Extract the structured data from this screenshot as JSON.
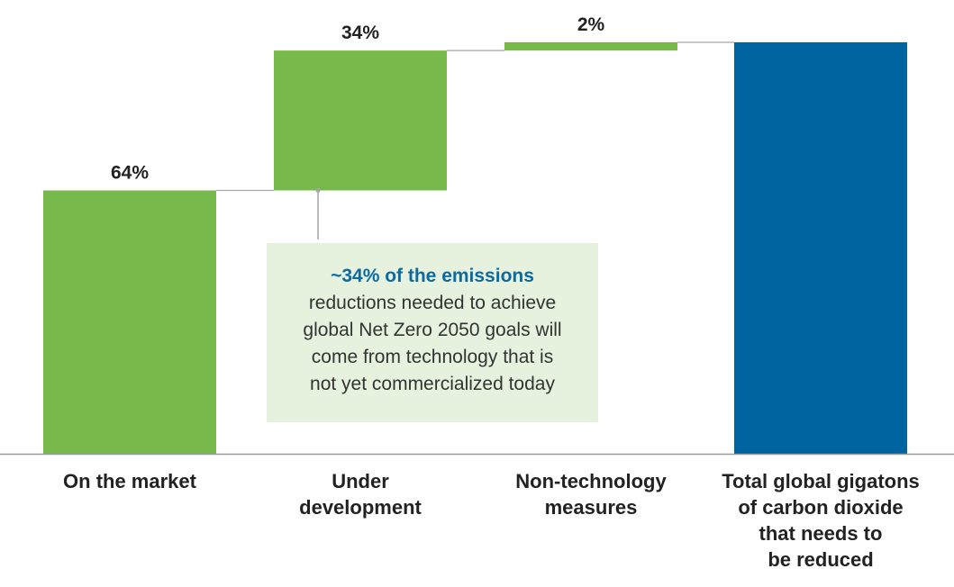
{
  "chart_data": {
    "type": "bar",
    "subtype": "waterfall",
    "categories": [
      "On the market",
      "Under development",
      "Non-technology measures",
      "Total global gigatons of carbon dioxide that needs to be reduced"
    ],
    "category_display": [
      "On the market",
      "Under\ndevelopment",
      "Non-technology\nmeasures",
      "Total global gigatons\nof carbon dioxide\nthat needs to\nbe reduced"
    ],
    "values": [
      64,
      34,
      2,
      100
    ],
    "data_labels": [
      "64%",
      "34%",
      "2%",
      ""
    ],
    "ylim": [
      0,
      100
    ],
    "grid": false,
    "legend": "none",
    "colors": {
      "step": "#77b94a",
      "total": "#0064a0",
      "connector": "#a6a6a6",
      "baseline": "#9a9a9a",
      "label_text": "#222222"
    },
    "annotation": {
      "highlight": "~34% of the emissions",
      "text": "reductions needed to achieve\nglobal Net Zero 2050 goals will\ncome from technology that is\nnot yet commercialized today",
      "highlight_color": "#0a6aa1",
      "background": "#e6f1de"
    }
  }
}
